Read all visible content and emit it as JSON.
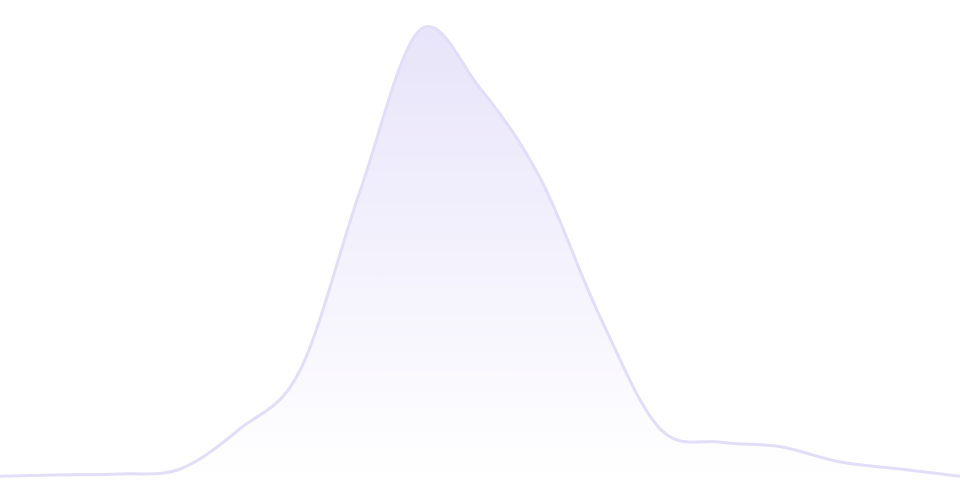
{
  "chart_data": {
    "type": "area",
    "x": [
      0,
      1,
      2,
      3,
      4,
      5,
      6,
      7,
      8,
      9,
      10,
      11,
      12,
      13,
      14,
      15,
      16
    ],
    "values": [
      0.4,
      0.7,
      0.9,
      2,
      11,
      24,
      64,
      100,
      87,
      67,
      36,
      11,
      8,
      7,
      3.6,
      2,
      0.4
    ],
    "ylim": [
      0,
      100
    ],
    "title": "",
    "xlabel": "",
    "ylabel": "",
    "grid": false,
    "axes_visible": false,
    "colors": {
      "stroke": "#e2ddf8",
      "fill_top": "#e8e4fa",
      "fill_bottom": "#ffffff"
    }
  }
}
